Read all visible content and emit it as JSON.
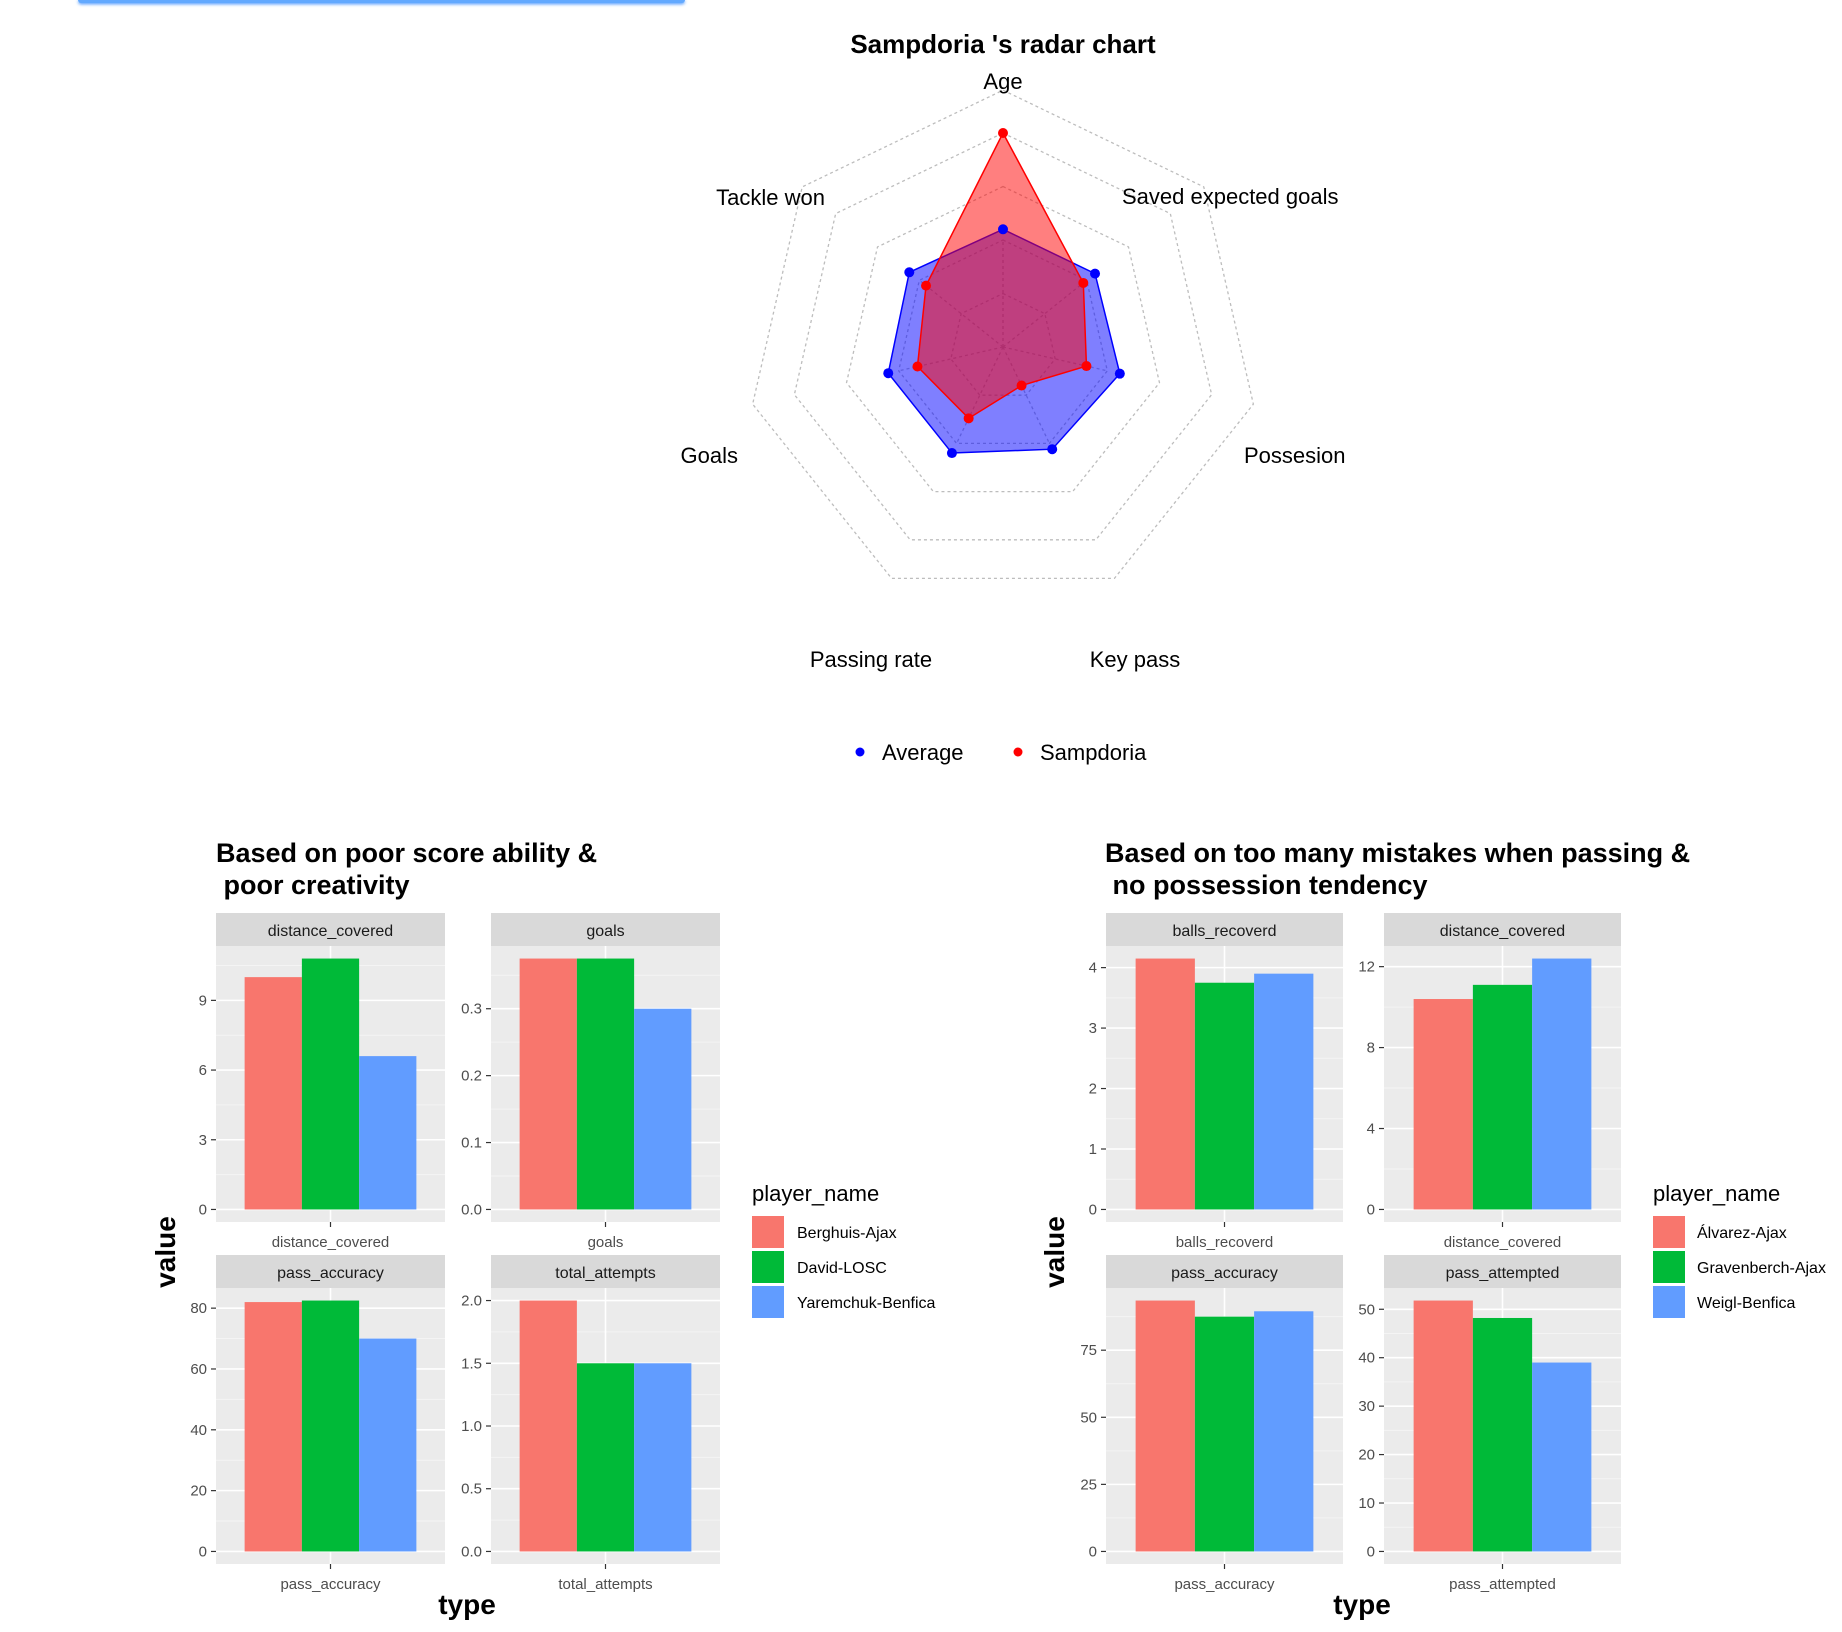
{
  "radar": {
    "title": "Sampdoria 's radar chart",
    "axes": [
      "Age",
      "Saved expected goals",
      "Possesion",
      "Key pass",
      "Passing rate",
      "Goals",
      "Tackle won"
    ],
    "legend": [
      {
        "label": "Average",
        "color": "#0000ff"
      },
      {
        "label": "Sampdoria",
        "color": "#ff0000"
      }
    ]
  },
  "panels": [
    {
      "title_line1": "Based on poor score ability &",
      "title_line2": " poor creativity",
      "ylabel": "value",
      "xlabel": "type",
      "legend_title": "player_name",
      "players": [
        "Berghuis-Ajax",
        "David-LOSC",
        "Yaremchuk-Benfica"
      ]
    },
    {
      "title_line1": "Based on too many mistakes when passing &",
      "title_line2": " no possession tendency",
      "ylabel": "value",
      "xlabel": "type",
      "legend_title": "player_name",
      "players": [
        "Álvarez-Ajax",
        "Gravenberch-Ajax",
        "Weigl-Benfica"
      ]
    }
  ],
  "chart_data": [
    {
      "type": "radar",
      "title": "Sampdoria 's radar chart",
      "categories": [
        "Age",
        "Saved expected goals",
        "Possesion",
        "Key pass",
        "Passing rate",
        "Goals",
        "Tackle won"
      ],
      "range": [
        0,
        1
      ],
      "grid": "dotted",
      "legend_position": "bottom",
      "series": [
        {
          "name": "Average",
          "color": "#0000ff",
          "values": [
            0.55,
            0.55,
            0.56,
            0.53,
            0.55,
            0.55,
            0.56
          ]
        },
        {
          "name": "Sampdoria",
          "color": "#ff0000",
          "values": [
            1.0,
            0.48,
            0.4,
            0.2,
            0.37,
            0.41,
            0.46
          ]
        }
      ]
    },
    {
      "type": "bar",
      "title": "Based on poor score ability &\n poor creativity",
      "xlabel": "type",
      "ylabel": "value",
      "legend_title": "player_name",
      "colors": [
        "#f8766d",
        "#00ba38",
        "#619cff"
      ],
      "series_names": [
        "Berghuis-Ajax",
        "David-LOSC",
        "Yaremchuk-Benfica"
      ],
      "facets": [
        {
          "name": "distance_covered",
          "values": [
            10.0,
            10.8,
            6.6
          ],
          "ylim": [
            0,
            10.8
          ],
          "ticks": [
            0,
            3,
            6,
            9
          ]
        },
        {
          "name": "goals",
          "values": [
            0.375,
            0.375,
            0.3
          ],
          "ylim": [
            0,
            0.375
          ],
          "ticks": [
            0.0,
            0.1,
            0.2,
            0.3
          ]
        },
        {
          "name": "pass_accuracy",
          "values": [
            82,
            82.5,
            70
          ],
          "ylim": [
            0,
            82.5
          ],
          "ticks": [
            0,
            20,
            40,
            60,
            80
          ]
        },
        {
          "name": "total_attempts",
          "values": [
            2.0,
            1.5,
            1.5
          ],
          "ylim": [
            0,
            2.0
          ],
          "ticks": [
            0.0,
            0.5,
            1.0,
            1.5,
            2.0
          ]
        }
      ]
    },
    {
      "type": "bar",
      "title": "Based on too many mistakes when passing &\n no possession tendency",
      "xlabel": "type",
      "ylabel": "value",
      "legend_title": "player_name",
      "colors": [
        "#f8766d",
        "#00ba38",
        "#619cff"
      ],
      "series_names": [
        "Álvarez-Ajax",
        "Gravenberch-Ajax",
        "Weigl-Benfica"
      ],
      "facets": [
        {
          "name": "balls_recoverd",
          "values": [
            4.15,
            3.75,
            3.9
          ],
          "ylim": [
            0,
            4.15
          ],
          "ticks": [
            0,
            1,
            2,
            3,
            4
          ]
        },
        {
          "name": "distance_covered",
          "values": [
            10.4,
            11.1,
            12.4
          ],
          "ylim": [
            0,
            12.4
          ],
          "ticks": [
            0,
            4,
            8,
            12
          ]
        },
        {
          "name": "pass_accuracy",
          "values": [
            93.5,
            87.5,
            89.5
          ],
          "ylim": [
            0,
            93.5
          ],
          "ticks": [
            0,
            25,
            50,
            75
          ]
        },
        {
          "name": "pass_attempted",
          "values": [
            51.8,
            48.2,
            39.0
          ],
          "ylim": [
            0,
            51.8
          ],
          "ticks": [
            0,
            10,
            20,
            30,
            40,
            50
          ]
        }
      ]
    }
  ]
}
